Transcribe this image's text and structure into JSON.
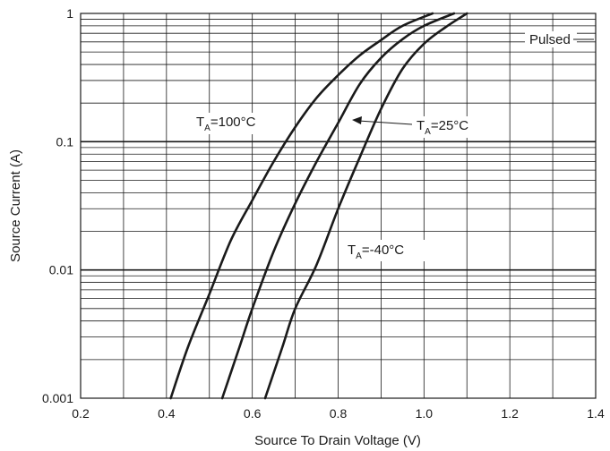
{
  "chart_data": {
    "type": "line",
    "xlabel": "Source To Drain Voltage (V)",
    "ylabel": "Source Current (A)",
    "xlim": [
      0.2,
      1.4
    ],
    "ylim": [
      0.001,
      1
    ],
    "yscale": "log",
    "grid": true,
    "x_ticks": [
      "0.2",
      "0.4",
      "0.6",
      "0.8",
      "1.0",
      "1.2",
      "1.4"
    ],
    "y_ticks": [
      "0.001",
      "0.01",
      "0.1",
      "1"
    ],
    "annotations": {
      "pulsed": "Pulsed",
      "ta100_prefix": "T",
      "ta100_sub": "A",
      "ta100_suffix": "=100°C",
      "ta25_prefix": "T",
      "ta25_sub": "A",
      "ta25_suffix": "=25°C",
      "ta40_prefix": "T",
      "ta40_sub": "A",
      "ta40_suffix": "=-40°C"
    },
    "series": [
      {
        "name": "T_A=100°C",
        "color": "#1a1a1a",
        "points": [
          [
            0.41,
            0.001
          ],
          [
            0.45,
            0.0025
          ],
          [
            0.5,
            0.0065
          ],
          [
            0.55,
            0.017
          ],
          [
            0.6,
            0.035
          ],
          [
            0.65,
            0.07
          ],
          [
            0.7,
            0.13
          ],
          [
            0.75,
            0.22
          ],
          [
            0.8,
            0.33
          ],
          [
            0.85,
            0.47
          ],
          [
            0.9,
            0.62
          ],
          [
            0.95,
            0.8
          ],
          [
            1.02,
            1.0
          ]
        ]
      },
      {
        "name": "T_A=25°C",
        "color": "#1a1a1a",
        "points": [
          [
            0.53,
            0.001
          ],
          [
            0.57,
            0.0025
          ],
          [
            0.6,
            0.005
          ],
          [
            0.65,
            0.014
          ],
          [
            0.7,
            0.033
          ],
          [
            0.75,
            0.07
          ],
          [
            0.8,
            0.14
          ],
          [
            0.85,
            0.28
          ],
          [
            0.9,
            0.45
          ],
          [
            0.95,
            0.63
          ],
          [
            1.0,
            0.8
          ],
          [
            1.07,
            1.0
          ]
        ]
      },
      {
        "name": "T_A=-40°C",
        "color": "#1a1a1a",
        "points": [
          [
            0.63,
            0.001
          ],
          [
            0.67,
            0.0025
          ],
          [
            0.7,
            0.005
          ],
          [
            0.75,
            0.011
          ],
          [
            0.8,
            0.03
          ],
          [
            0.85,
            0.075
          ],
          [
            0.9,
            0.18
          ],
          [
            0.95,
            0.37
          ],
          [
            1.0,
            0.58
          ],
          [
            1.05,
            0.78
          ],
          [
            1.1,
            1.0
          ]
        ]
      }
    ]
  }
}
